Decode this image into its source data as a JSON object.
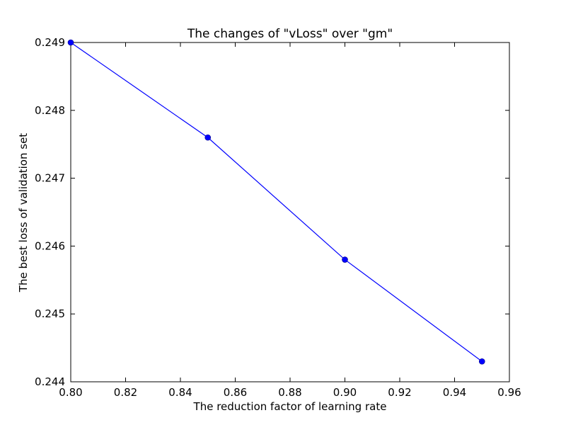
{
  "chart_data": {
    "type": "line",
    "title": "The changes of \"vLoss\" over \"gm\"",
    "xlabel": "The reduction factor of learning rate",
    "ylabel": "The best loss of validation set",
    "xlim": [
      0.8,
      0.96
    ],
    "ylim": [
      0.244,
      0.249
    ],
    "xticks": [
      "0.80",
      "0.82",
      "0.84",
      "0.86",
      "0.88",
      "0.90",
      "0.92",
      "0.94",
      "0.96"
    ],
    "yticks": [
      "0.244",
      "0.245",
      "0.246",
      "0.247",
      "0.248",
      "0.249"
    ],
    "grid": false,
    "x": [
      0.8,
      0.85,
      0.9,
      0.95
    ],
    "series": [
      {
        "values": [
          0.249,
          0.2476,
          0.2458,
          0.2443
        ],
        "color": "#0000ff",
        "marker": "circle"
      }
    ]
  }
}
